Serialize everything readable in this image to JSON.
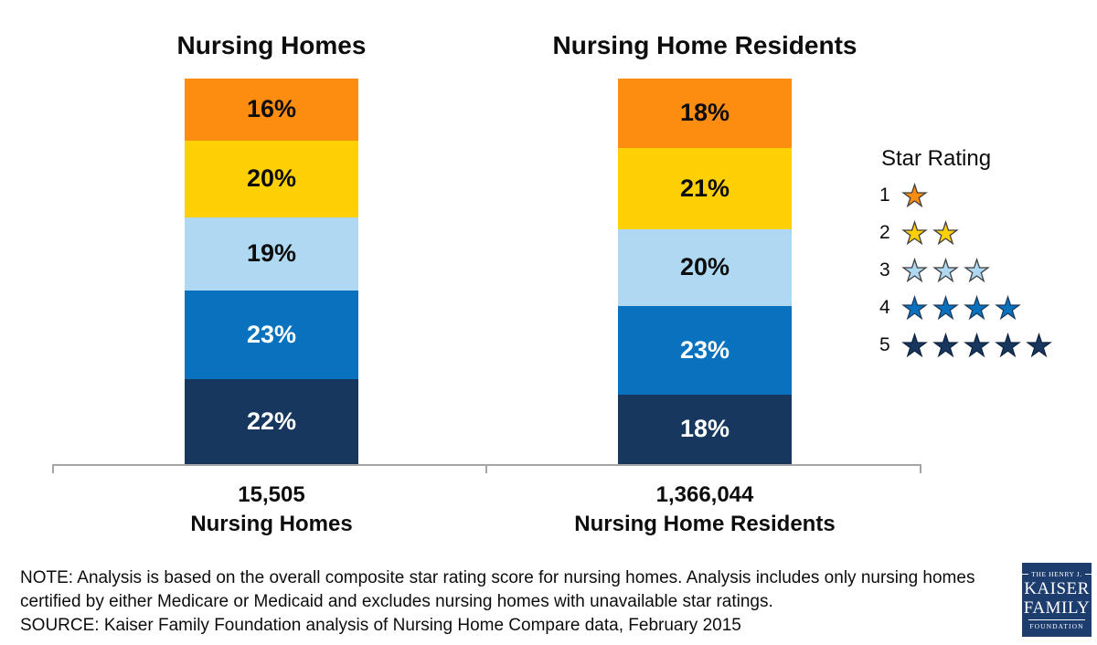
{
  "chart_data": {
    "type": "bar",
    "subtype": "100%-stacked-column",
    "legend_position": "right",
    "axis_color": "#a6a6a6",
    "columns": [
      {
        "title": "Nursing Homes",
        "axis_value": "15,505",
        "axis_label": "Nursing Homes",
        "segments": [
          {
            "name": "1-star",
            "label": "16%",
            "pct": 16,
            "color": "#fc8d10",
            "text_color": "#0d0d0d"
          },
          {
            "name": "2-star",
            "label": "20%",
            "pct": 20,
            "color": "#ffd006",
            "text_color": "#0d0d0d"
          },
          {
            "name": "3-star",
            "label": "19%",
            "pct": 19,
            "color": "#afd9f2",
            "text_color": "#0d0d0d"
          },
          {
            "name": "4-star",
            "label": "23%",
            "pct": 23,
            "color": "#0972be",
            "text_color": "#ffffff"
          },
          {
            "name": "5-star",
            "label": "22%",
            "pct": 22,
            "color": "#17375e",
            "text_color": "#ffffff"
          }
        ]
      },
      {
        "title": "Nursing Home Residents",
        "axis_value": "1,366,044",
        "axis_label": "Nursing Home Residents",
        "segments": [
          {
            "name": "1-star",
            "label": "18%",
            "pct": 18,
            "color": "#fc8d10",
            "text_color": "#0d0d0d"
          },
          {
            "name": "2-star",
            "label": "21%",
            "pct": 21,
            "color": "#ffd006",
            "text_color": "#0d0d0d"
          },
          {
            "name": "3-star",
            "label": "20%",
            "pct": 20,
            "color": "#afd9f2",
            "text_color": "#0d0d0d"
          },
          {
            "name": "4-star",
            "label": "23%",
            "pct": 23,
            "color": "#0972be",
            "text_color": "#ffffff"
          },
          {
            "name": "5-star",
            "label": "18%",
            "pct": 18,
            "color": "#17375e",
            "text_color": "#ffffff"
          }
        ]
      }
    ]
  },
  "legend": {
    "title": "Star Rating",
    "rows": [
      {
        "number": "1",
        "stars": 1,
        "fill": "#fc8d10",
        "stroke": "#3f3f3f"
      },
      {
        "number": "2",
        "stars": 2,
        "fill": "#ffd006",
        "stroke": "#3f3f3f"
      },
      {
        "number": "3",
        "stars": 3,
        "fill": "#afd9f2",
        "stroke": "#3f3f3f"
      },
      {
        "number": "4",
        "stars": 4,
        "fill": "#0972be",
        "stroke": "#1e3a5c"
      },
      {
        "number": "5",
        "stars": 5,
        "fill": "#17375e",
        "stroke": "#0f2440"
      }
    ]
  },
  "notes": {
    "note_line1": "NOTE: Analysis is based on the overall composite star rating score for nursing homes. Analysis includes only nursing homes",
    "note_line2": "certified by either Medicare or Medicaid and excludes nursing homes with unavailable star ratings.",
    "source_line": "SOURCE: Kaiser Family Foundation analysis of Nursing Home Compare data, February 2015"
  },
  "logo": {
    "line1": "THE HENRY J.",
    "line2": "KAISER",
    "line3": "FAMILY",
    "line4": "FOUNDATION"
  }
}
